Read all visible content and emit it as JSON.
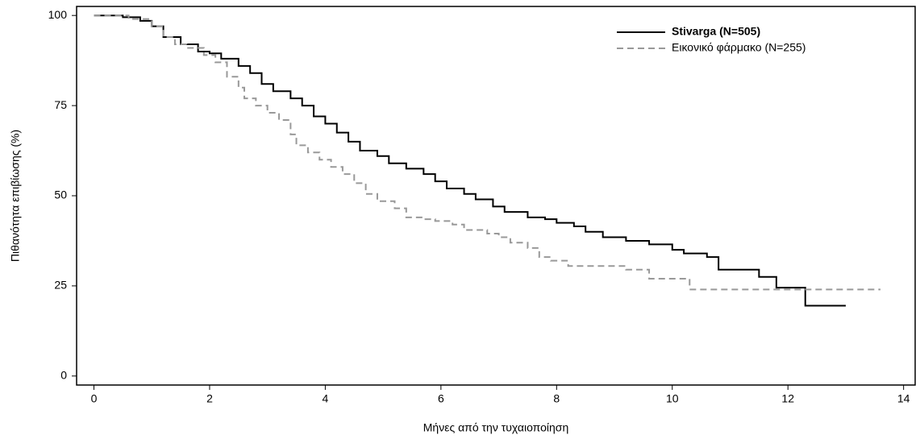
{
  "chart_data": {
    "type": "step",
    "xlabel": "Μήνες από την τυχαιοποίηση",
    "ylabel": "Πιθανότητα επιβίωσης (%)",
    "xlim": [
      -0.3,
      14.2
    ],
    "ylim": [
      -2.5,
      102.5
    ],
    "xticks": [
      0,
      2,
      4,
      6,
      8,
      10,
      12,
      14
    ],
    "yticks": [
      0,
      25,
      50,
      75,
      100
    ],
    "legend": "upper right",
    "series": [
      {
        "name": "Stivarga (N=505)",
        "color": "#000000",
        "dash": "solid",
        "x": [
          0,
          0.5,
          0.8,
          1.0,
          1.2,
          1.5,
          1.8,
          2.0,
          2.2,
          2.5,
          2.7,
          2.9,
          3.1,
          3.4,
          3.6,
          3.8,
          4.0,
          4.2,
          4.4,
          4.6,
          4.9,
          5.1,
          5.4,
          5.7,
          5.9,
          6.1,
          6.4,
          6.6,
          6.9,
          7.1,
          7.5,
          7.8,
          8.0,
          8.3,
          8.5,
          8.8,
          9.2,
          9.6,
          10.0,
          10.2,
          10.6,
          10.8,
          11.5,
          11.8,
          12.3,
          13.0
        ],
        "values": [
          100,
          99.5,
          98.5,
          97,
          94,
          92,
          90,
          89.5,
          88,
          86,
          84,
          81,
          79,
          77,
          75,
          72,
          70,
          67.5,
          65,
          62.5,
          61,
          59,
          57.5,
          56,
          54,
          52,
          50.5,
          49,
          47,
          45.5,
          44,
          43.5,
          42.5,
          41.5,
          40,
          38.5,
          37.5,
          36.5,
          35,
          34,
          33,
          29.5,
          27.5,
          24.5,
          19.5,
          19.5
        ]
      },
      {
        "name": "Εικονικό φάρμακο (N=255)",
        "color": "#999999",
        "dash": "dashed",
        "x": [
          0,
          0.6,
          1.0,
          1.2,
          1.4,
          1.6,
          1.9,
          2.1,
          2.3,
          2.5,
          2.6,
          2.8,
          3.0,
          3.2,
          3.4,
          3.5,
          3.7,
          3.9,
          4.1,
          4.3,
          4.5,
          4.7,
          4.9,
          5.2,
          5.4,
          5.7,
          5.9,
          6.2,
          6.4,
          6.8,
          7.0,
          7.2,
          7.5,
          7.7,
          7.9,
          8.2,
          9.2,
          9.6,
          10.3,
          13.6
        ],
        "values": [
          100,
          99,
          97,
          94,
          92,
          91,
          89,
          87,
          83,
          80,
          77,
          75,
          73,
          71,
          67,
          64,
          62,
          60,
          58,
          56,
          53.5,
          50.5,
          48.5,
          46.5,
          44,
          43.5,
          43,
          42,
          40.5,
          39.5,
          38.5,
          37,
          35.5,
          33,
          32,
          30.5,
          29.5,
          27,
          24,
          24
        ]
      }
    ]
  }
}
